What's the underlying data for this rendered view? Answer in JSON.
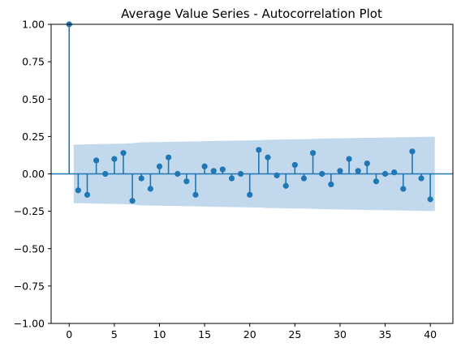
{
  "chart_data": {
    "type": "scatter",
    "style": "stem",
    "title": "Average Value Series - Autocorrelation Plot",
    "xlabel": "",
    "ylabel": "",
    "xlim": [
      -2,
      42.5
    ],
    "ylim": [
      -1.0,
      1.0
    ],
    "x_ticks": [
      0,
      5,
      10,
      15,
      20,
      25,
      30,
      35,
      40
    ],
    "y_ticks": [
      -1.0,
      -0.75,
      -0.5,
      -0.25,
      0.0,
      0.25,
      0.5,
      0.75,
      1.0
    ],
    "x_tick_labels": [
      "0",
      "5",
      "10",
      "15",
      "20",
      "25",
      "30",
      "35",
      "40"
    ],
    "y_tick_labels": [
      "−1.00",
      "−0.75",
      "−0.50",
      "−0.25",
      "0.00",
      "0.25",
      "0.50",
      "0.75",
      "1.00"
    ],
    "grid": false,
    "series": [
      {
        "lags": [
          0,
          1,
          2,
          3,
          4,
          5,
          6,
          7,
          8,
          9,
          10,
          11,
          12,
          13,
          14,
          15,
          16,
          17,
          18,
          19,
          20,
          21,
          22,
          23,
          24,
          25,
          26,
          27,
          28,
          29,
          30,
          31,
          32,
          33,
          34,
          35,
          36,
          37,
          38,
          39,
          40
        ],
        "values": [
          1.0,
          -0.11,
          -0.14,
          0.09,
          0.0,
          0.1,
          0.14,
          -0.18,
          -0.03,
          -0.1,
          0.05,
          0.11,
          0.0,
          -0.05,
          -0.14,
          0.05,
          0.02,
          0.03,
          -0.03,
          0.0,
          -0.14,
          0.16,
          0.11,
          -0.01,
          -0.08,
          0.06,
          -0.03,
          0.14,
          0.0,
          -0.07,
          0.02,
          0.1,
          0.02,
          0.07,
          -0.05,
          0.0,
          0.01,
          -0.1,
          0.15,
          -0.03,
          -0.17
        ]
      }
    ],
    "confidence_band": {
      "lags": [
        1,
        2,
        3,
        4,
        5,
        6,
        7,
        8,
        9,
        10,
        11,
        12,
        13,
        14,
        15,
        16,
        17,
        18,
        19,
        20,
        21,
        22,
        23,
        24,
        25,
        26,
        27,
        28,
        29,
        30,
        31,
        32,
        33,
        34,
        35,
        36,
        37,
        38,
        39,
        40
      ],
      "upper": [
        0.196,
        0.197,
        0.199,
        0.2,
        0.201,
        0.202,
        0.205,
        0.211,
        0.212,
        0.213,
        0.214,
        0.215,
        0.216,
        0.217,
        0.219,
        0.22,
        0.221,
        0.222,
        0.223,
        0.224,
        0.225,
        0.228,
        0.229,
        0.23,
        0.231,
        0.232,
        0.234,
        0.236,
        0.237,
        0.238,
        0.239,
        0.24,
        0.241,
        0.242,
        0.243,
        0.244,
        0.245,
        0.246,
        0.247,
        0.248
      ],
      "lower": [
        -0.196,
        -0.197,
        -0.199,
        -0.2,
        -0.201,
        -0.202,
        -0.205,
        -0.211,
        -0.212,
        -0.213,
        -0.214,
        -0.215,
        -0.216,
        -0.217,
        -0.219,
        -0.22,
        -0.221,
        -0.222,
        -0.223,
        -0.224,
        -0.225,
        -0.228,
        -0.229,
        -0.23,
        -0.231,
        -0.232,
        -0.234,
        -0.236,
        -0.237,
        -0.238,
        -0.239,
        -0.24,
        -0.241,
        -0.242,
        -0.243,
        -0.244,
        -0.245,
        -0.246,
        -0.247,
        -0.248
      ]
    },
    "colors": {
      "stem": "#1f77b4",
      "band": "#c2d8ec",
      "axes": "#000000",
      "background": "#ffffff"
    }
  }
}
